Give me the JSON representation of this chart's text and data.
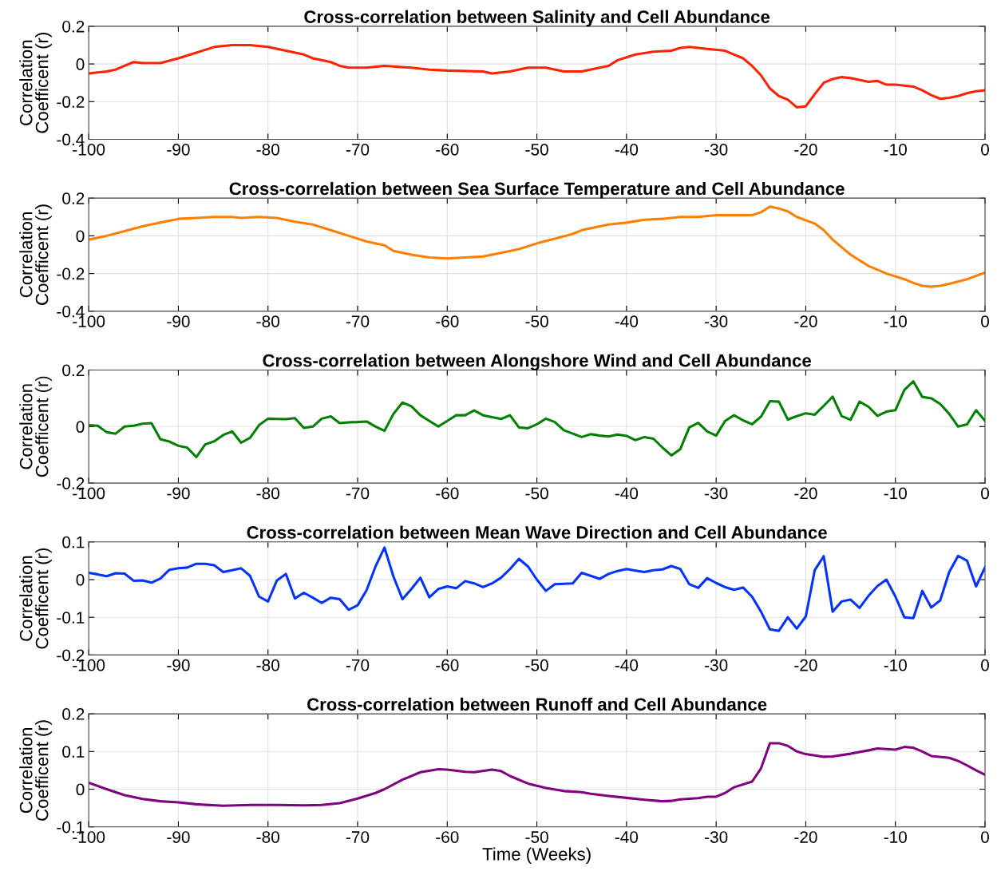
{
  "chart_data": [
    {
      "type": "line",
      "title": "Cross-correlation between Salinity and Cell Abundance",
      "ylabel": "Correlation\nCoefficent (r)",
      "xlim": [
        -100,
        0
      ],
      "xticks": [
        -100,
        -90,
        -80,
        -70,
        -60,
        -50,
        -40,
        -30,
        -20,
        -10,
        0
      ],
      "ylim": [
        -0.4,
        0.2
      ],
      "yticks": [
        -0.4,
        -0.2,
        0,
        0.2
      ],
      "grid": true,
      "series": [
        {
          "color": "#ff2200",
          "x": [
            -100,
            -98,
            -97,
            -96,
            -95,
            -94,
            -92,
            -90,
            -88,
            -86,
            -84,
            -82,
            -80,
            -78,
            -76,
            -75,
            -73,
            -72,
            -71,
            -69,
            -67,
            -64,
            -62,
            -60,
            -56,
            -55,
            -53,
            -51,
            -49,
            -47,
            -45,
            -43,
            -42,
            -41,
            -39,
            -37,
            -35,
            -34,
            -33,
            -31,
            -29,
            -28,
            -27,
            -26,
            -25,
            -24,
            -23,
            -22,
            -21,
            -20,
            -19,
            -18,
            -17,
            -16,
            -15,
            -13,
            -12,
            -11,
            -10,
            -8,
            -7,
            -6,
            -5,
            -4,
            -3,
            -2,
            -1,
            0
          ],
          "values": [
            -0.05,
            -0.04,
            -0.03,
            -0.01,
            0.01,
            0.005,
            0.005,
            0.03,
            0.06,
            0.09,
            0.1,
            0.1,
            0.09,
            0.07,
            0.05,
            0.03,
            0.01,
            -0.01,
            -0.02,
            -0.02,
            -0.01,
            -0.02,
            -0.03,
            -0.035,
            -0.04,
            -0.05,
            -0.04,
            -0.02,
            -0.02,
            -0.04,
            -0.04,
            -0.02,
            -0.01,
            0.02,
            0.05,
            0.065,
            0.07,
            0.085,
            0.09,
            0.08,
            0.07,
            0.05,
            0.03,
            -0.01,
            -0.06,
            -0.13,
            -0.17,
            -0.19,
            -0.23,
            -0.225,
            -0.16,
            -0.1,
            -0.08,
            -0.07,
            -0.075,
            -0.095,
            -0.09,
            -0.11,
            -0.11,
            -0.12,
            -0.14,
            -0.165,
            -0.185,
            -0.18,
            -0.17,
            -0.155,
            -0.145,
            -0.14
          ]
        }
      ]
    },
    {
      "type": "line",
      "title": "Cross-correlation between Sea Surface Temperature and Cell Abundance",
      "ylabel": "Correlation\nCoefficent (r)",
      "xlim": [
        -100,
        0
      ],
      "xticks": [
        -100,
        -90,
        -80,
        -70,
        -60,
        -50,
        -40,
        -30,
        -20,
        -10,
        0
      ],
      "ylim": [
        -0.4,
        0.2
      ],
      "yticks": [
        -0.4,
        -0.2,
        0,
        0.2
      ],
      "grid": true,
      "series": [
        {
          "color": "#ff8000",
          "x": [
            -100,
            -98,
            -96,
            -94,
            -92,
            -90,
            -88,
            -86,
            -84,
            -83,
            -81,
            -79,
            -77,
            -75,
            -73,
            -71,
            -69,
            -67,
            -66,
            -64,
            -62,
            -60,
            -58,
            -56,
            -54,
            -52,
            -50,
            -48,
            -46,
            -45,
            -43,
            -42,
            -40,
            -38,
            -36,
            -34,
            -32,
            -30,
            -28,
            -26,
            -25,
            -24,
            -23,
            -22,
            -21,
            -19,
            -18,
            -17,
            -16,
            -15,
            -13,
            -11,
            -9,
            -8,
            -7,
            -6,
            -5,
            -4,
            -2,
            0
          ],
          "values": [
            -0.02,
            0.0,
            0.025,
            0.05,
            0.07,
            0.09,
            0.095,
            0.1,
            0.1,
            0.095,
            0.1,
            0.095,
            0.075,
            0.06,
            0.03,
            0.0,
            -0.03,
            -0.05,
            -0.08,
            -0.1,
            -0.115,
            -0.12,
            -0.115,
            -0.11,
            -0.09,
            -0.07,
            -0.04,
            -0.015,
            0.01,
            0.03,
            0.05,
            0.06,
            0.07,
            0.085,
            0.09,
            0.1,
            0.1,
            0.11,
            0.11,
            0.11,
            0.125,
            0.155,
            0.145,
            0.13,
            0.1,
            0.065,
            0.03,
            -0.02,
            -0.06,
            -0.1,
            -0.16,
            -0.2,
            -0.23,
            -0.25,
            -0.265,
            -0.27,
            -0.265,
            -0.255,
            -0.23,
            -0.195
          ]
        }
      ]
    },
    {
      "type": "line",
      "title": "Cross-correlation between Alongshore Wind and Cell Abundance",
      "ylabel": "Correlation\nCoefficent (r)",
      "xlim": [
        -100,
        0
      ],
      "xticks": [
        -100,
        -90,
        -80,
        -70,
        -60,
        -50,
        -40,
        -30,
        -20,
        -10,
        0
      ],
      "ylim": [
        -0.2,
        0.2
      ],
      "yticks": [
        -0.2,
        0,
        0.2
      ],
      "grid": true,
      "series": [
        {
          "color": "#008000",
          "x": [
            -100,
            -99,
            -98,
            -97,
            -96,
            -95,
            -94,
            -93,
            -92,
            -91,
            -90,
            -89,
            -88,
            -87,
            -86,
            -85,
            -84,
            -83,
            -82,
            -81,
            -80,
            -79,
            -78,
            -77,
            -76,
            -75,
            -74,
            -73,
            -72,
            -71,
            -70,
            -69,
            -68,
            -67,
            -66,
            -65,
            -64,
            -63,
            -62,
            -61,
            -60,
            -59,
            -58,
            -57,
            -56,
            -55,
            -54,
            -53,
            -52,
            -51,
            -50,
            -49,
            -48,
            -47,
            -46,
            -45,
            -44,
            -43,
            -42,
            -41,
            -40,
            -39,
            -38,
            -37,
            -36,
            -35,
            -34,
            -33,
            -32,
            -31,
            -30,
            -29,
            -28,
            -27,
            -26,
            -25,
            -24,
            -23,
            -22,
            -21,
            -20,
            -19,
            -18,
            -17,
            -16,
            -15,
            -14,
            -13,
            -12,
            -11,
            -10,
            -9,
            -8,
            -7,
            -6,
            -5,
            -4,
            -3,
            -2,
            -1,
            0
          ],
          "values": [
            0.005,
            0.003,
            -0.02,
            -0.025,
            0.0,
            0.003,
            0.01,
            0.012,
            -0.045,
            -0.053,
            -0.068,
            -0.075,
            -0.108,
            -0.063,
            -0.052,
            -0.03,
            -0.017,
            -0.057,
            -0.04,
            0.005,
            0.028,
            0.027,
            0.026,
            0.03,
            -0.005,
            0.0,
            0.028,
            0.036,
            0.012,
            0.015,
            0.016,
            0.018,
            0.0,
            -0.015,
            0.045,
            0.085,
            0.072,
            0.04,
            0.02,
            0.0,
            0.02,
            0.04,
            0.04,
            0.057,
            0.04,
            0.033,
            0.027,
            0.04,
            -0.003,
            -0.006,
            0.008,
            0.028,
            0.016,
            -0.013,
            -0.025,
            -0.037,
            -0.027,
            -0.032,
            -0.035,
            -0.028,
            -0.033,
            -0.048,
            -0.037,
            -0.043,
            -0.074,
            -0.102,
            -0.08,
            -0.003,
            0.013,
            -0.017,
            -0.032,
            0.02,
            0.04,
            0.022,
            0.008,
            0.035,
            0.09,
            0.088,
            0.025,
            0.037,
            0.047,
            0.042,
            0.073,
            0.106,
            0.037,
            0.024,
            0.088,
            0.07,
            0.038,
            0.053,
            0.058,
            0.13,
            0.16,
            0.105,
            0.1,
            0.08,
            0.045,
            0.0,
            0.008,
            0.058,
            0.02
          ]
        }
      ]
    },
    {
      "type": "line",
      "title": "Cross-correlation between Mean Wave Direction and Cell Abundance",
      "ylabel": "Correlation\nCoefficent (r)",
      "xlim": [
        -100,
        0
      ],
      "xticks": [
        -100,
        -90,
        -80,
        -70,
        -60,
        -50,
        -40,
        -30,
        -20,
        -10,
        0
      ],
      "ylim": [
        -0.2,
        0.1
      ],
      "yticks": [
        -0.2,
        -0.1,
        0,
        0.1
      ],
      "grid": true,
      "series": [
        {
          "color": "#0033ff",
          "x": [
            -100,
            -99,
            -98,
            -97,
            -96,
            -95,
            -94,
            -93,
            -92,
            -91,
            -90,
            -89,
            -88,
            -87,
            -86,
            -85,
            -84,
            -83,
            -82,
            -81,
            -80,
            -79,
            -78,
            -77,
            -76,
            -75,
            -74,
            -73,
            -72,
            -71,
            -70,
            -69,
            -68,
            -67,
            -66,
            -65,
            -64,
            -63,
            -62,
            -61,
            -60,
            -59,
            -58,
            -57,
            -56,
            -55,
            -54,
            -53,
            -52,
            -51,
            -50,
            -49,
            -48,
            -47,
            -46,
            -45,
            -44,
            -43,
            -42,
            -41,
            -40,
            -39,
            -38,
            -37,
            -36,
            -35,
            -34,
            -33,
            -32,
            -31,
            -30,
            -29,
            -28,
            -27,
            -26,
            -25,
            -24,
            -23,
            -22,
            -21,
            -20,
            -19,
            -18,
            -17,
            -16,
            -15,
            -14,
            -13,
            -12,
            -11,
            -10,
            -9,
            -8,
            -7,
            -6,
            -5,
            -4,
            -3,
            -2,
            -1,
            0
          ],
          "values": [
            0.018,
            0.014,
            0.009,
            0.017,
            0.016,
            -0.003,
            -0.002,
            -0.008,
            0.003,
            0.026,
            0.03,
            0.032,
            0.042,
            0.042,
            0.038,
            0.02,
            0.025,
            0.03,
            0.01,
            -0.045,
            -0.058,
            -0.002,
            0.015,
            -0.05,
            -0.035,
            -0.048,
            -0.062,
            -0.048,
            -0.052,
            -0.08,
            -0.068,
            -0.028,
            0.035,
            0.085,
            0.008,
            -0.052,
            -0.025,
            0.005,
            -0.047,
            -0.025,
            -0.018,
            -0.023,
            -0.004,
            -0.01,
            -0.02,
            -0.01,
            0.005,
            0.028,
            0.055,
            0.035,
            0.0,
            -0.03,
            -0.012,
            -0.011,
            -0.01,
            0.018,
            0.01,
            0.002,
            0.015,
            0.023,
            0.028,
            0.024,
            0.02,
            0.025,
            0.027,
            0.036,
            0.028,
            -0.012,
            -0.022,
            0.004,
            -0.009,
            -0.02,
            -0.027,
            -0.021,
            -0.045,
            -0.085,
            -0.132,
            -0.136,
            -0.1,
            -0.13,
            -0.098,
            0.025,
            0.062,
            -0.085,
            -0.058,
            -0.053,
            -0.075,
            -0.043,
            -0.017,
            0.0,
            -0.045,
            -0.1,
            -0.102,
            -0.03,
            -0.074,
            -0.055,
            0.02,
            0.063,
            0.05,
            -0.018,
            0.033
          ]
        }
      ]
    },
    {
      "type": "line",
      "title": "Cross-correlation between Runoff and Cell Abundance",
      "xlabel": "Time (Weeks)",
      "ylabel": "Correlation\nCoefficent (r)",
      "xlim": [
        -100,
        0
      ],
      "xticks": [
        -100,
        -90,
        -80,
        -70,
        -60,
        -50,
        -40,
        -30,
        -20,
        -10,
        0
      ],
      "ylim": [
        -0.1,
        0.2
      ],
      "yticks": [
        -0.1,
        0,
        0.1,
        0.2
      ],
      "grid": true,
      "series": [
        {
          "color": "#800080",
          "x": [
            -100,
            -98,
            -96,
            -94,
            -92,
            -90,
            -88,
            -85,
            -82,
            -79,
            -76,
            -74,
            -72,
            -70,
            -68,
            -67,
            -65,
            -63,
            -61,
            -60,
            -58,
            -57,
            -55,
            -54,
            -53,
            -51,
            -49,
            -47,
            -45,
            -44,
            -42,
            -40,
            -38,
            -36,
            -35,
            -34,
            -32,
            -31,
            -30,
            -29,
            -28,
            -26,
            -25,
            -24,
            -23,
            -22,
            -21,
            -20,
            -18,
            -17,
            -15,
            -13,
            -12,
            -10,
            -9,
            -8,
            -7,
            -6,
            -4,
            -3,
            -2,
            -1,
            0
          ],
          "values": [
            0.017,
            0.0,
            -0.016,
            -0.026,
            -0.032,
            -0.035,
            -0.04,
            -0.044,
            -0.042,
            -0.042,
            -0.043,
            -0.042,
            -0.037,
            -0.025,
            -0.01,
            0.0,
            0.025,
            0.045,
            0.053,
            0.052,
            0.046,
            0.045,
            0.052,
            0.048,
            0.035,
            0.015,
            0.003,
            -0.005,
            -0.008,
            -0.012,
            -0.018,
            -0.023,
            -0.028,
            -0.032,
            -0.031,
            -0.027,
            -0.024,
            -0.02,
            -0.02,
            -0.01,
            0.005,
            0.02,
            0.055,
            0.122,
            0.122,
            0.115,
            0.1,
            0.093,
            0.086,
            0.087,
            0.094,
            0.103,
            0.108,
            0.105,
            0.112,
            0.11,
            0.1,
            0.088,
            0.083,
            0.075,
            0.063,
            0.05,
            0.038
          ]
        }
      ]
    }
  ]
}
